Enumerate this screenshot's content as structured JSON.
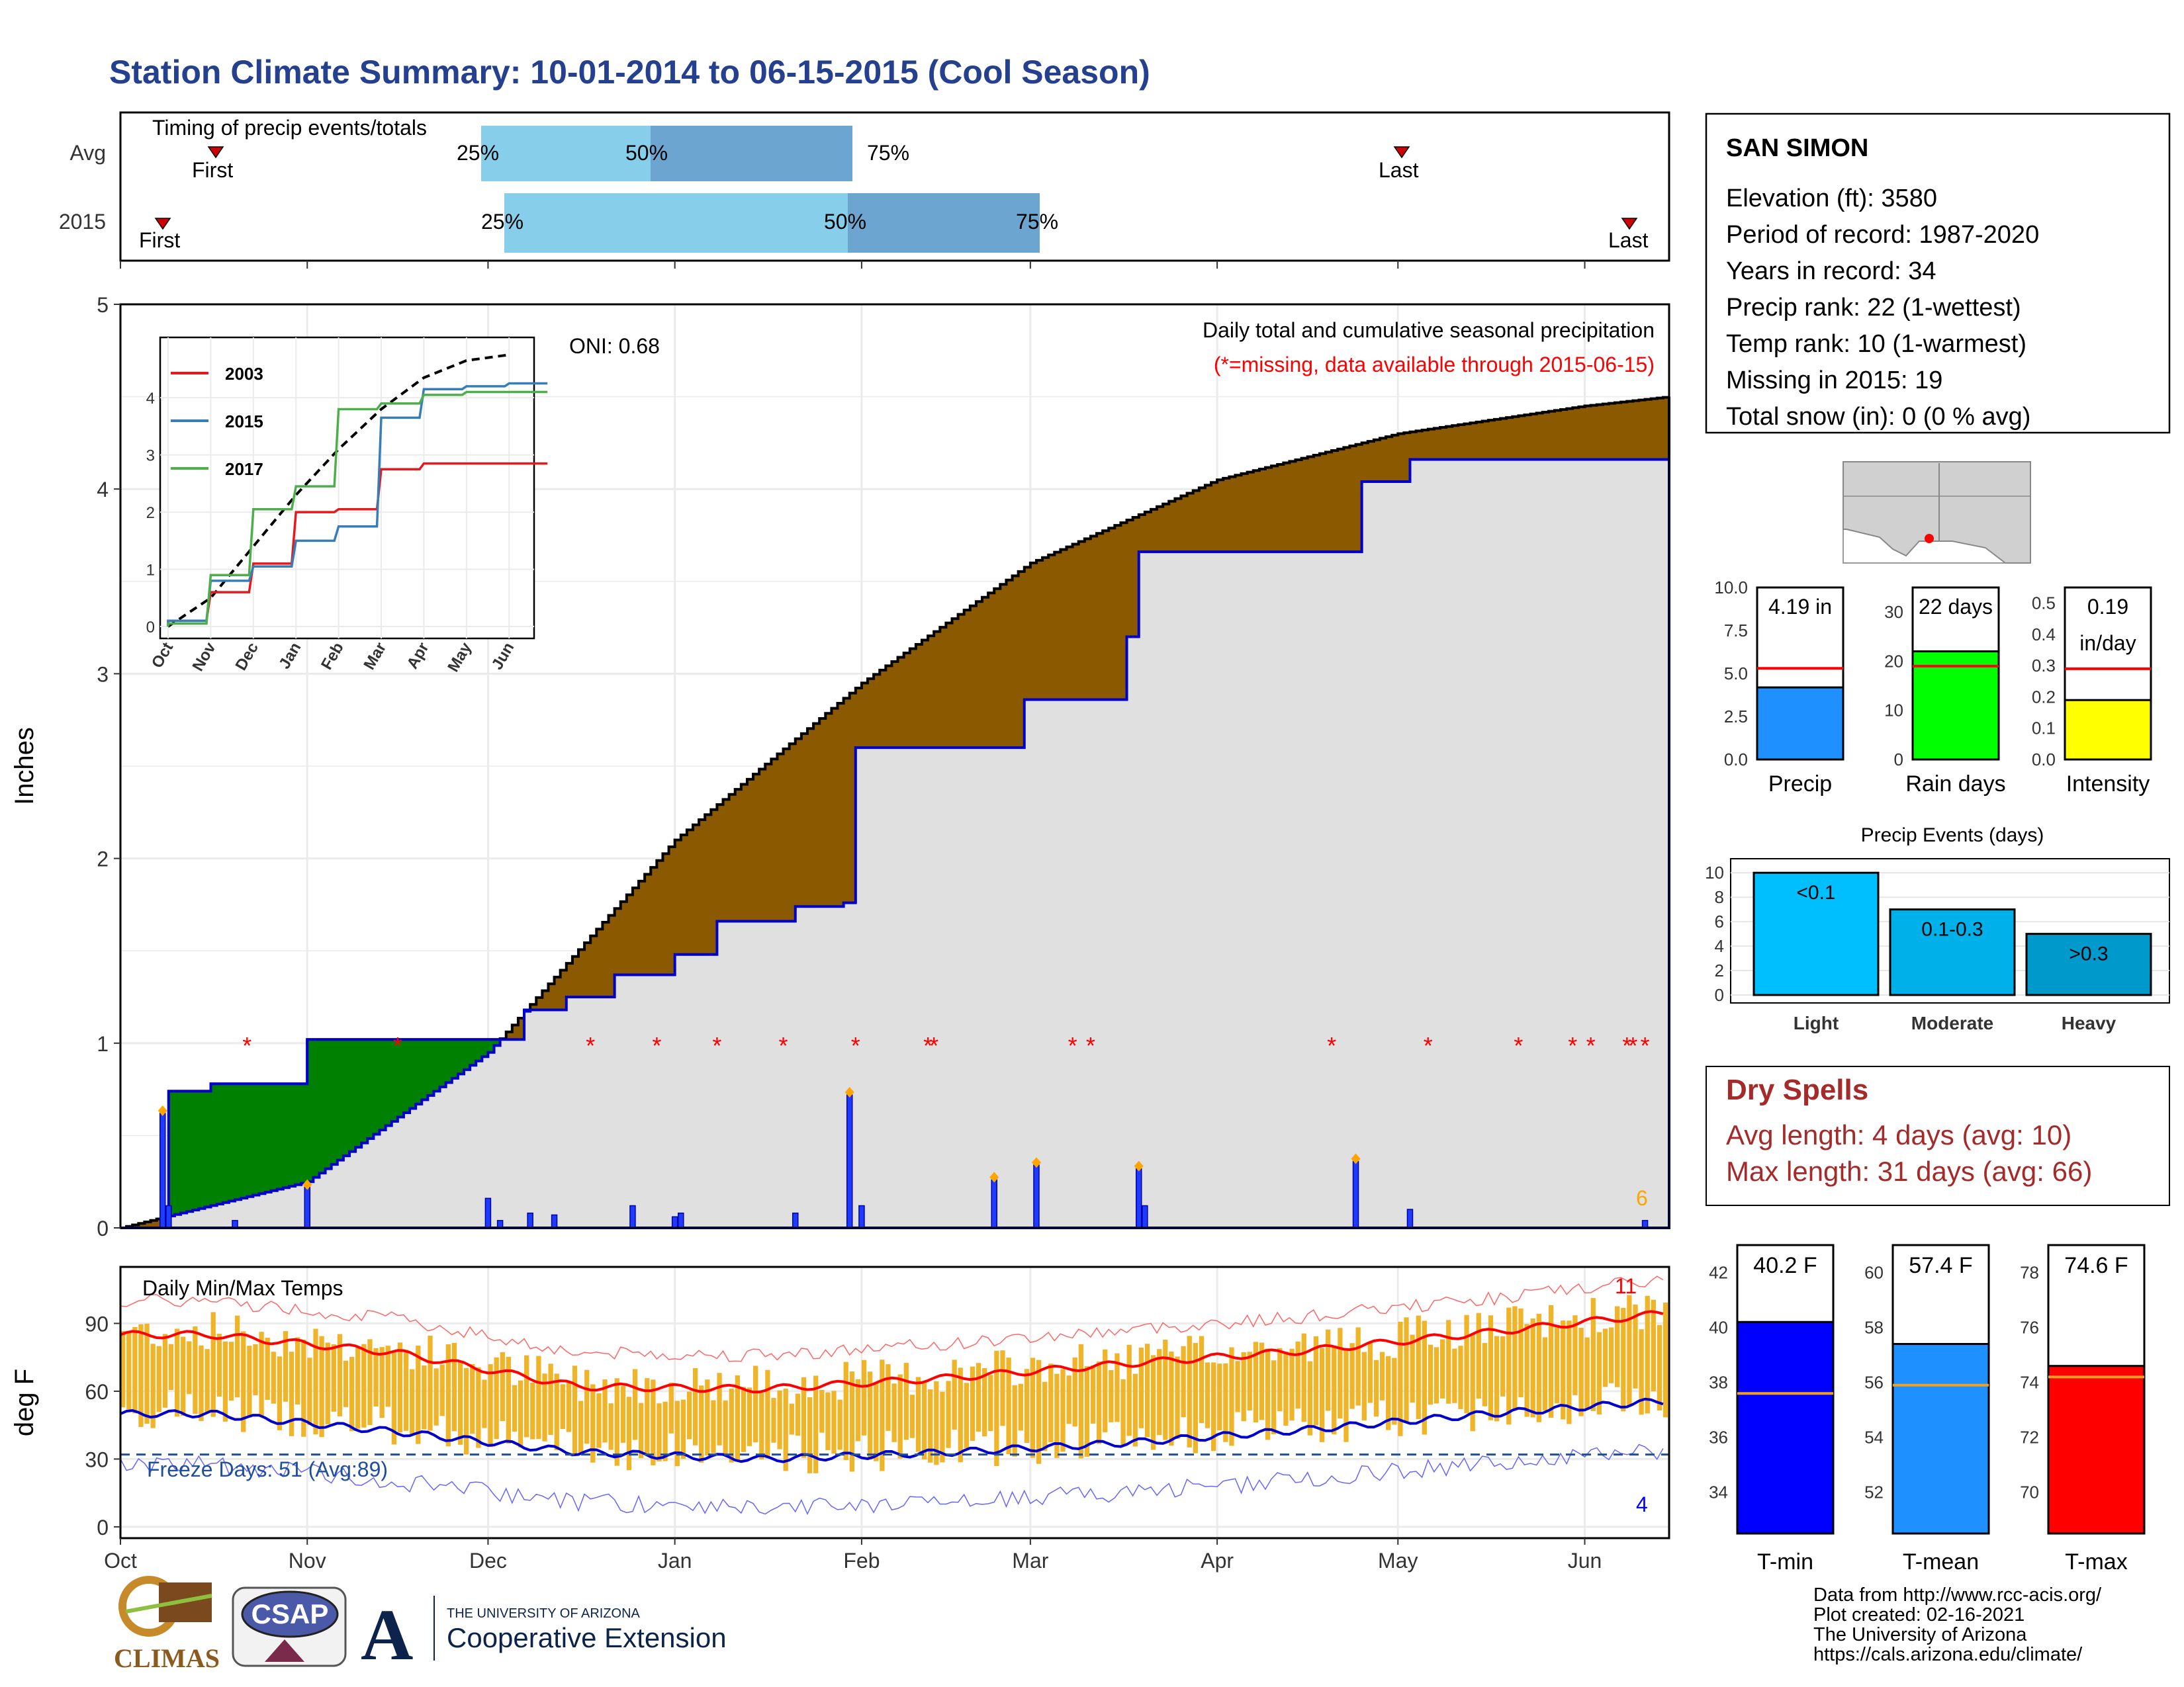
{
  "title": "Station Climate Summary: 10-01-2014 to 06-15-2015 (Cool Season)",
  "timing": {
    "title": "Timing of precip events/totals",
    "rows": [
      {
        "label": "Avg",
        "first_label": "First",
        "last_label": "Last",
        "q25": "25%",
        "q50": "50%",
        "q75": "75%"
      },
      {
        "label": "2015",
        "first_label": "First",
        "last_label": "Last",
        "q25": "25%",
        "q50": "50%",
        "q75": "75%"
      }
    ]
  },
  "main": {
    "ylabel": "Inches",
    "oni": "ONI: 0.68",
    "legend_title": "Daily total and cumulative seasonal precipitation",
    "missing_note": "(*=missing, data available through 2015-06-15)",
    "count_label": "6",
    "y_ticks": [
      "0",
      "1",
      "2",
      "3",
      "4",
      "5"
    ]
  },
  "inset": {
    "series_labels": [
      "2003",
      "2015",
      "2017"
    ],
    "y_ticks": [
      "0",
      "1",
      "2",
      "3",
      "4"
    ],
    "x_ticks": [
      "Oct",
      "Nov",
      "Dec",
      "Jan",
      "Feb",
      "Mar",
      "Apr",
      "May",
      "Jun"
    ]
  },
  "temps": {
    "title": "Daily Min/Max Temps",
    "ylabel": "deg F",
    "freeze_label": "Freeze Days: 51 (Avg:89)",
    "hot_count": "11",
    "cold_count": "4",
    "y_ticks": [
      "0",
      "30",
      "60",
      "90"
    ]
  },
  "x_ticks": [
    "Oct",
    "Nov",
    "Dec",
    "Jan",
    "Feb",
    "Mar",
    "Apr",
    "May",
    "Jun"
  ],
  "station": {
    "name": "SAN SIMON",
    "lines": [
      "Elevation (ft): 3580",
      "Period of record: 1987-2020",
      "Years in record: 34",
      "Precip rank: 22 (1-wettest)",
      "Temp rank: 10 (1-warmest)",
      "Missing in 2015: 19",
      "Total snow (in): 0 (0 % avg)"
    ]
  },
  "mini_bars": [
    {
      "label": "Precip",
      "value_text": "4.19 in",
      "value2_text": "",
      "ticks": [
        "0.0",
        "2.5",
        "5.0",
        "7.5",
        "10.0"
      ],
      "color": "#1e90ff"
    },
    {
      "label": "Rain days",
      "value_text": "22 days",
      "value2_text": "",
      "ticks": [
        "0",
        "10",
        "20",
        "30"
      ],
      "color": "#00ff00"
    },
    {
      "label": "Intensity",
      "value_text": "0.19",
      "value2_text": "in/day",
      "ticks": [
        "0.0",
        "0.1",
        "0.2",
        "0.3",
        "0.4",
        "0.5"
      ],
      "color": "#ffff00"
    }
  ],
  "events": {
    "title": "Precip Events (days)",
    "categories": [
      "Light",
      "Moderate",
      "Heavy"
    ],
    "bar_labels": [
      "<0.1",
      "0.1-0.3",
      ">0.3"
    ],
    "y_ticks": [
      "0",
      "2",
      "4",
      "6",
      "8",
      "10"
    ]
  },
  "dry_spells": {
    "title": "Dry Spells",
    "line1": "Avg length: 4 days (avg: 10)",
    "line2": "Max length: 31 days (avg: 66)"
  },
  "temp_bars": [
    {
      "label": "T-min",
      "value_text": "40.2 F",
      "ticks": [
        "34",
        "36",
        "38",
        "40",
        "42"
      ],
      "color": "#0000ff"
    },
    {
      "label": "T-mean",
      "value_text": "57.4 F",
      "ticks": [
        "52",
        "54",
        "56",
        "58",
        "60"
      ],
      "color": "#1e90ff"
    },
    {
      "label": "T-max",
      "value_text": "74.6 F",
      "ticks": [
        "70",
        "72",
        "74",
        "76",
        "78"
      ],
      "color": "#ff0000"
    }
  ],
  "footer": {
    "lines": [
      "Data from http://www.rcc-acis.org/",
      "Plot created: 02-16-2021",
      "The University of Arizona",
      "https://cals.arizona.edu/climate/"
    ],
    "climas": "CLIMAS",
    "csap": "CSAP",
    "ua_small": "THE UNIVERSITY OF ARIZONA",
    "ua_big": "Cooperative Extension"
  },
  "chart_data": [
    {
      "type": "area",
      "title": "Daily total and cumulative seasonal precipitation",
      "ylabel": "Inches",
      "ylim": [
        0,
        5
      ],
      "x_range": [
        "2014-10-01",
        "2015-06-15"
      ],
      "series": [
        {
          "name": "2015",
          "x": [
            "2014-10-01",
            "2014-10-08",
            "2014-10-09",
            "2014-10-16",
            "2014-11-01",
            "2014-11-17",
            "2014-12-01",
            "2014-12-07",
            "2014-12-14",
            "2014-12-22",
            "2015-01-01",
            "2015-01-08",
            "2015-01-21",
            "2015-01-29",
            "2015-01-31",
            "2015-02-23",
            "2015-02-28",
            "2015-03-17",
            "2015-03-19",
            "2015-04-23",
            "2015-04-25",
            "2015-05-03",
            "2015-06-15"
          ],
          "y": [
            0.0,
            0.02,
            0.74,
            0.78,
            1.02,
            1.02,
            1.02,
            1.18,
            1.25,
            1.37,
            1.48,
            1.66,
            1.74,
            1.76,
            2.6,
            2.6,
            2.86,
            3.2,
            3.66,
            3.66,
            4.04,
            4.16,
            4.19
          ]
        }
      ],
      "average_cumulative": {
        "x": [
          "2014-10-01",
          "2014-11-01",
          "2014-12-01",
          "2015-01-01",
          "2015-02-01",
          "2015-03-01",
          "2015-04-01",
          "2015-05-01",
          "2015-06-01",
          "2015-06-15"
        ],
        "y": [
          0.0,
          0.25,
          0.95,
          2.1,
          2.95,
          3.6,
          4.05,
          4.3,
          4.45,
          4.5
        ]
      },
      "daily_bars": [
        {
          "x": "2014-10-08",
          "y": 0.62
        },
        {
          "x": "2014-10-09",
          "y": 0.12
        },
        {
          "x": "2014-10-20",
          "y": 0.04
        },
        {
          "x": "2014-11-01",
          "y": 0.22
        },
        {
          "x": "2014-12-01",
          "y": 0.16
        },
        {
          "x": "2014-12-03",
          "y": 0.04
        },
        {
          "x": "2014-12-08",
          "y": 0.08
        },
        {
          "x": "2014-12-12",
          "y": 0.07
        },
        {
          "x": "2014-12-25",
          "y": 0.12
        },
        {
          "x": "2015-01-01",
          "y": 0.06
        },
        {
          "x": "2015-01-02",
          "y": 0.08
        },
        {
          "x": "2015-01-21",
          "y": 0.08
        },
        {
          "x": "2015-01-30",
          "y": 0.72
        },
        {
          "x": "2015-02-01",
          "y": 0.12
        },
        {
          "x": "2015-02-23",
          "y": 0.26
        },
        {
          "x": "2015-03-02",
          "y": 0.34
        },
        {
          "x": "2015-03-19",
          "y": 0.32
        },
        {
          "x": "2015-03-20",
          "y": 0.12
        },
        {
          "x": "2015-04-24",
          "y": 0.36
        },
        {
          "x": "2015-05-03",
          "y": 0.1
        },
        {
          "x": "2015-06-11",
          "y": 0.04
        }
      ],
      "missing_dates": [
        "2014-10-22",
        "2014-11-16",
        "2014-12-18",
        "2014-12-29",
        "2015-01-08",
        "2015-01-19",
        "2015-01-31",
        "2015-02-12",
        "2015-02-13",
        "2015-03-08",
        "2015-03-11",
        "2015-04-20",
        "2015-05-06",
        "2015-05-21",
        "2015-05-30",
        "2015-06-02",
        "2015-06-08",
        "2015-06-09",
        "2015-06-11"
      ]
    },
    {
      "type": "line",
      "title": "Timing of precip events/totals",
      "categories": [
        "Avg",
        "2015"
      ],
      "first": [
        "2014-10-17",
        "2014-10-08"
      ],
      "q25": [
        "2014-12-03",
        "2014-12-07"
      ],
      "q50": [
        "2015-01-01",
        "2015-01-30"
      ],
      "q75": [
        "2015-02-06",
        "2015-02-29"
      ],
      "last": [
        "2015-05-03",
        "2015-06-11"
      ]
    },
    {
      "type": "line",
      "xlabel": "",
      "ylabel": "",
      "ylim": [
        0,
        4.8
      ],
      "x": [
        "Oct",
        "Nov",
        "Dec",
        "Jan",
        "Feb",
        "Mar",
        "Apr",
        "May",
        "Jun"
      ],
      "series": [
        {
          "name": "2003",
          "values": [
            0.1,
            0.6,
            1.1,
            2.0,
            2.05,
            2.75,
            2.85,
            2.85,
            2.85
          ]
        },
        {
          "name": "2015",
          "values": [
            0.1,
            0.8,
            1.05,
            1.5,
            1.75,
            3.65,
            4.15,
            4.2,
            4.25
          ]
        },
        {
          "name": "2017",
          "values": [
            0.05,
            0.9,
            2.05,
            2.45,
            3.8,
            3.9,
            4.05,
            4.1,
            4.1
          ]
        }
      ],
      "average": [
        0.0,
        0.5,
        1.4,
        2.3,
        3.1,
        3.8,
        4.35,
        4.65,
        4.75
      ]
    },
    {
      "type": "bar",
      "title": "Daily Min/Max Temps",
      "ylabel": "deg F",
      "ylim": [
        -5,
        115
      ],
      "x_range": [
        "2014-10-01",
        "2015-06-15"
      ],
      "series": [
        {
          "name": "avg max",
          "x": [
            "Oct",
            "Nov",
            "Dec",
            "Jan",
            "Feb",
            "Mar",
            "Apr",
            "May",
            "Jun"
          ],
          "values": [
            85,
            77,
            62,
            61,
            66,
            72,
            78,
            86,
            95
          ]
        },
        {
          "name": "avg min",
          "x": [
            "Oct",
            "Nov",
            "Dec",
            "Jan",
            "Feb",
            "Mar",
            "Apr",
            "May",
            "Jun"
          ],
          "values": [
            50,
            42,
            33,
            30,
            33,
            37,
            43,
            50,
            56
          ]
        }
      ],
      "freeze_line": 32
    },
    {
      "type": "bar",
      "categories": [
        "Precip"
      ],
      "values": [
        4.19
      ],
      "average": 5.3,
      "ylim": [
        0,
        10
      ]
    },
    {
      "type": "bar",
      "categories": [
        "Rain days"
      ],
      "values": [
        22
      ],
      "average": 19,
      "ylim": [
        0,
        35
      ]
    },
    {
      "type": "bar",
      "categories": [
        "Intensity"
      ],
      "values": [
        0.19
      ],
      "average": 0.29,
      "ylim": [
        0,
        0.55
      ]
    },
    {
      "type": "bar",
      "title": "Precip Events (days)",
      "categories": [
        "Light",
        "Moderate",
        "Heavy"
      ],
      "values": [
        10,
        7,
        5
      ],
      "ylim": [
        0,
        10.5
      ]
    },
    {
      "type": "bar",
      "categories": [
        "T-min"
      ],
      "values": [
        40.2
      ],
      "average": 37.6,
      "ylim": [
        32.5,
        43
      ]
    },
    {
      "type": "bar",
      "categories": [
        "T-mean"
      ],
      "values": [
        57.4
      ],
      "average": 55.9,
      "ylim": [
        50.5,
        61
      ]
    },
    {
      "type": "bar",
      "categories": [
        "T-max"
      ],
      "values": [
        74.6
      ],
      "average": 74.2,
      "ylim": [
        68.5,
        79
      ]
    }
  ]
}
